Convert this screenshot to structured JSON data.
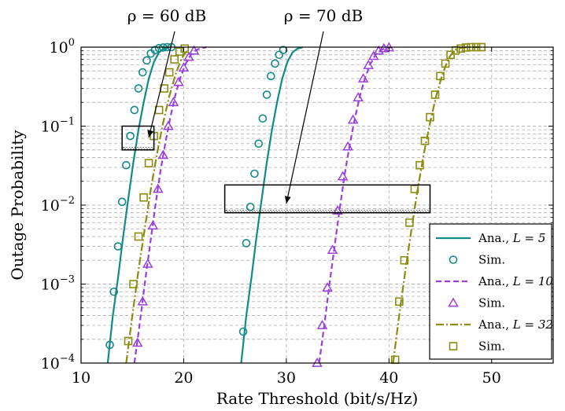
{
  "chart_data": {
    "type": "line",
    "title": "",
    "xlabel": "Rate Threshold (bit/s/Hz)",
    "ylabel": "Outage Probability",
    "xlim": [
      10,
      56
    ],
    "ylim": [
      0.0001,
      1
    ],
    "y_scale": "log",
    "grid": true,
    "legend_placement": "lower-right",
    "x_ticks": [
      10,
      20,
      30,
      40,
      50
    ],
    "y_ticks": [
      {
        "value": 0.0001,
        "base": "10",
        "exp": "−4"
      },
      {
        "value": 0.001,
        "base": "10",
        "exp": "−3"
      },
      {
        "value": 0.01,
        "base": "10",
        "exp": "−2"
      },
      {
        "value": 0.1,
        "base": "10",
        "exp": "−1"
      },
      {
        "value": 1,
        "base": "10",
        "exp": "0"
      }
    ],
    "annotations": [
      {
        "id": "rho60",
        "text": "ρ = 60 dB",
        "box_x": [
          14,
          17.1
        ],
        "box_y": [
          0.05,
          0.1
        ],
        "arrow_to": [
          16.6,
          0.072
        ]
      },
      {
        "id": "rho70",
        "text": "ρ = 70 dB",
        "box_x": [
          24,
          44
        ],
        "box_y": [
          0.008,
          0.018
        ],
        "arrow_to": [
          30,
          0.0105
        ]
      }
    ],
    "legend": [
      {
        "label": "Ana., ",
        "math": "L = 5",
        "color": "#138a8a",
        "kind": "line",
        "dash": ""
      },
      {
        "label": "Sim.",
        "math": "",
        "color": "#138a8a",
        "kind": "marker",
        "marker": "circle"
      },
      {
        "label": "Ana., ",
        "math": "L = 10",
        "color": "#9b3fdc",
        "kind": "line",
        "dash": "7,4"
      },
      {
        "label": "Sim.",
        "math": "",
        "color": "#9b3fdc",
        "kind": "marker",
        "marker": "triangle"
      },
      {
        "label": "Ana., ",
        "math": "L = 32",
        "color": "#8c8c12",
        "kind": "line",
        "dash": "10,3,2,3"
      },
      {
        "label": "Sim.",
        "math": "",
        "color": "#8c8c12",
        "kind": "marker",
        "marker": "square"
      }
    ],
    "series": [
      {
        "name": "Ana., L = 5, ρ = 60 dB",
        "color": "#138a8a",
        "dash": "",
        "marker": "circle",
        "x": [
          12.6,
          13.1,
          13.6,
          14.1,
          14.6,
          15.1,
          15.6,
          16.1,
          16.6,
          17.1,
          17.6,
          18.1,
          18.6
        ],
        "y": [
          0.0001,
          0.0004,
          0.0012,
          0.004,
          0.012,
          0.035,
          0.09,
          0.2,
          0.4,
          0.65,
          0.86,
          0.96,
          0.995
        ]
      },
      {
        "name": "Ana., L = 5, ρ = 70 dB",
        "color": "#138a8a",
        "dash": "",
        "marker": "circle",
        "x": [
          25.6,
          26.1,
          26.6,
          27.1,
          27.6,
          28.1,
          28.6,
          29.1,
          29.6,
          30.1,
          30.6,
          31.1,
          31.6
        ],
        "y": [
          0.0001,
          0.0004,
          0.0012,
          0.004,
          0.012,
          0.035,
          0.09,
          0.2,
          0.4,
          0.65,
          0.86,
          0.96,
          0.995
        ]
      },
      {
        "name": "Ana., L = 10, ρ = 60 dB",
        "color": "#9b3fdc",
        "dash": "7,4",
        "marker": "triangle",
        "x": [
          15.2,
          15.7,
          16.2,
          16.7,
          17.2,
          17.7,
          18.2,
          18.7,
          19.2,
          19.7,
          20.2,
          20.7,
          21.2,
          21.7,
          22.2
        ],
        "y": [
          0.0001,
          0.0003,
          0.001,
          0.003,
          0.009,
          0.025,
          0.06,
          0.13,
          0.25,
          0.42,
          0.62,
          0.8,
          0.92,
          0.97,
          0.995
        ]
      },
      {
        "name": "Ana., L = 10, ρ = 70 dB",
        "color": "#9b3fdc",
        "dash": "7,4",
        "marker": "triangle",
        "x": [
          33.2,
          33.7,
          34.2,
          34.7,
          35.2,
          35.7,
          36.2,
          36.7,
          37.2,
          37.7,
          38.2,
          38.7,
          39.2,
          39.7,
          40.2
        ],
        "y": [
          0.0001,
          0.0003,
          0.001,
          0.003,
          0.009,
          0.025,
          0.06,
          0.13,
          0.25,
          0.42,
          0.62,
          0.8,
          0.92,
          0.97,
          0.995
        ]
      },
      {
        "name": "Ana., L = 32, ρ = 60 dB",
        "color": "#8c8c12",
        "dash": "10,3,2,3",
        "marker": "square",
        "x": [
          14.4,
          15,
          15.6,
          16.2,
          16.8,
          17.4,
          18,
          18.6,
          19.2,
          19.8,
          20.4
        ],
        "y": [
          0.0001,
          0.0004,
          0.0015,
          0.005,
          0.016,
          0.045,
          0.11,
          0.24,
          0.45,
          0.72,
          0.93
        ]
      },
      {
        "name": "Ana., L = 32, ρ = 70 dB",
        "color": "#8c8c12",
        "dash": "10,3,2,3",
        "marker": "square",
        "x": [
          40.4,
          41,
          41.6,
          42.2,
          42.8,
          43.4,
          44,
          44.6,
          45.2,
          45.8,
          46.4,
          47,
          47.6,
          48.2,
          48.8
        ],
        "y": [
          0.0001,
          0.0004,
          0.0015,
          0.005,
          0.016,
          0.045,
          0.11,
          0.24,
          0.45,
          0.72,
          0.93,
          0.98,
          0.995,
          1,
          1
        ]
      }
    ],
    "sim_markers": [
      {
        "series": "Sim., L = 5, ρ = 60 dB",
        "color": "#138a8a",
        "marker": "circle",
        "x": [
          12.8,
          13.2,
          13.6,
          14,
          14.4,
          14.8,
          15.2,
          15.6,
          16,
          16.4,
          16.8,
          17.2,
          17.6,
          18,
          18.4,
          18.8
        ],
        "y": [
          0.00017,
          0.0008,
          0.003,
          0.011,
          0.032,
          0.075,
          0.16,
          0.3,
          0.48,
          0.68,
          0.83,
          0.92,
          0.97,
          0.99,
          1,
          1
        ]
      },
      {
        "series": "Sim., L = 5, ρ = 70 dB",
        "color": "#138a8a",
        "marker": "circle",
        "x": [
          25.8,
          26.1,
          26.5,
          26.9,
          27.3,
          27.7,
          28.1,
          28.5,
          28.9,
          29.3,
          29.7
        ],
        "y": [
          0.00025,
          0.0033,
          0.0095,
          0.025,
          0.06,
          0.125,
          0.25,
          0.43,
          0.62,
          0.8,
          0.92
        ]
      },
      {
        "series": "Sim., L = 10, ρ = 60 dB",
        "color": "#9b3fdc",
        "marker": "triangle",
        "x": [
          15.5,
          16,
          16.5,
          17,
          17.5,
          18,
          18.5,
          19,
          19.5,
          20,
          20.5,
          21
        ],
        "y": [
          0.00018,
          0.0006,
          0.0018,
          0.0055,
          0.016,
          0.043,
          0.1,
          0.2,
          0.36,
          0.55,
          0.75,
          0.9
        ]
      },
      {
        "series": "Sim., L = 10, ρ = 70 dB",
        "color": "#9b3fdc",
        "marker": "triangle",
        "x": [
          33,
          33.5,
          34,
          34.5,
          35,
          35.5,
          36,
          36.5,
          37,
          37.5,
          38,
          38.5,
          39,
          39.5,
          40
        ],
        "y": [
          0.0001,
          0.0003,
          0.0009,
          0.0027,
          0.0085,
          0.023,
          0.055,
          0.12,
          0.23,
          0.4,
          0.59,
          0.77,
          0.9,
          0.96,
          0.99
        ]
      },
      {
        "series": "Sim., L = 32, ρ = 60 dB",
        "color": "#8c8c12",
        "marker": "square",
        "x": [
          14.6,
          15.1,
          15.6,
          16.1,
          16.6,
          17.1,
          17.6,
          18.1,
          18.6,
          19.1,
          19.6,
          20.1
        ],
        "y": [
          0.00019,
          0.001,
          0.004,
          0.0125,
          0.034,
          0.075,
          0.16,
          0.3,
          0.48,
          0.7,
          0.88,
          0.96
        ]
      },
      {
        "series": "Sim., L = 32, ρ = 70 dB",
        "color": "#8c8c12",
        "marker": "square",
        "x": [
          40.6,
          41,
          41.5,
          42,
          42.5,
          43,
          43.5,
          44,
          44.5,
          45,
          45.5,
          46,
          46.5,
          47,
          47.5,
          48,
          48.5,
          49
        ],
        "y": [
          0.00011,
          0.0006,
          0.002,
          0.006,
          0.016,
          0.032,
          0.065,
          0.13,
          0.25,
          0.43,
          0.62,
          0.8,
          0.91,
          0.96,
          0.99,
          1,
          1,
          1
        ]
      }
    ]
  }
}
